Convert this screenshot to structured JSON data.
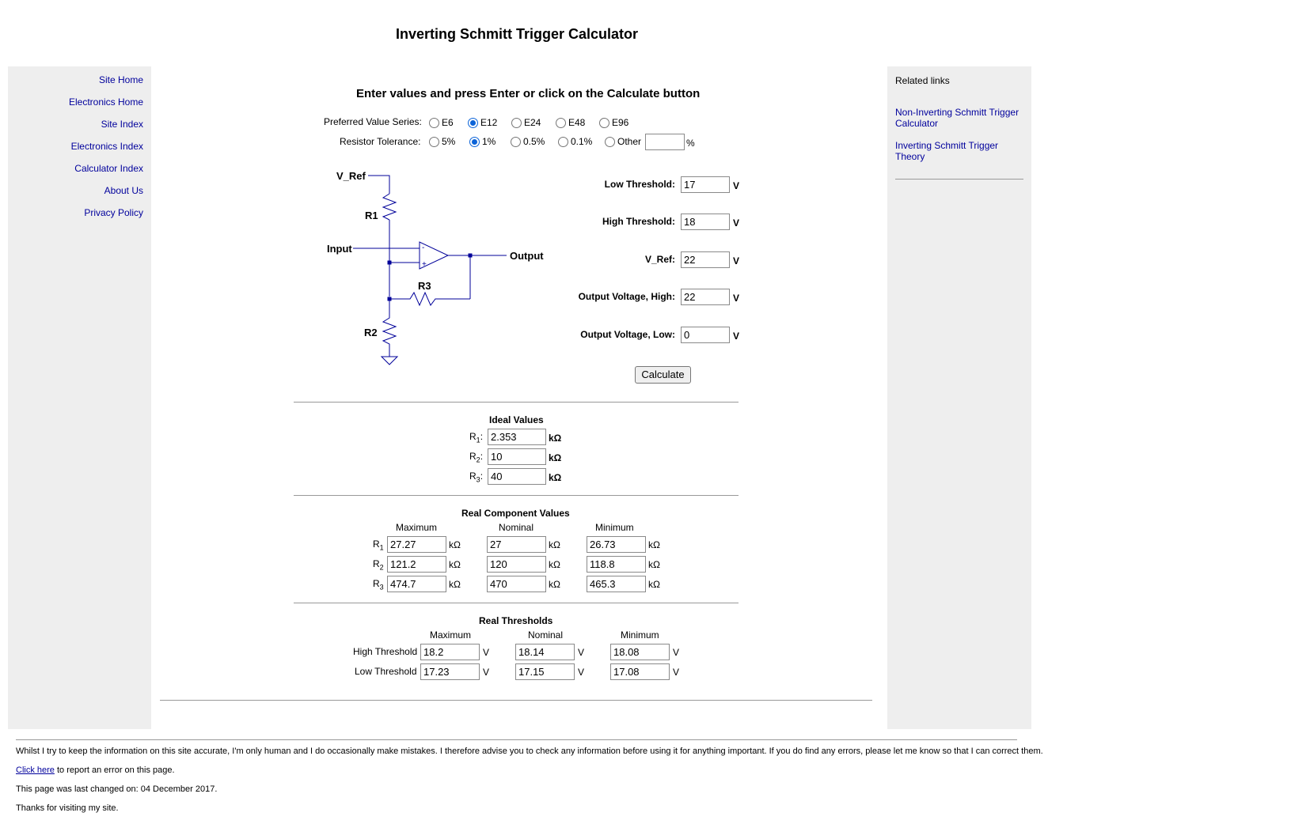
{
  "title": "Inverting Schmitt Trigger Calculator",
  "nav": [
    "Site Home",
    "Electronics Home",
    "Site Index",
    "Electronics Index",
    "Calculator Index",
    "About Us",
    "Privacy Policy"
  ],
  "related": {
    "heading": "Related links",
    "links": [
      "Non-Inverting Schmitt Trigger Calculator",
      "Inverting Schmitt Trigger Theory"
    ]
  },
  "instructions": "Enter values and press Enter or click on the Calculate button",
  "series": {
    "label": "Preferred Value Series:",
    "options": [
      "E6",
      "E12",
      "E24",
      "E48",
      "E96"
    ],
    "selected": "E12"
  },
  "tolerance": {
    "label": "Resistor Tolerance:",
    "options": [
      "5%",
      "1%",
      "0.5%",
      "0.1%",
      "Other"
    ],
    "selected": "1%",
    "other_value": "",
    "other_unit": "%"
  },
  "schematic": {
    "vref": "V_Ref",
    "r1": "R1",
    "r2": "R2",
    "r3": "R3",
    "input": "Input",
    "output": "Output",
    "minus": "-",
    "plus": "+"
  },
  "fields": [
    {
      "label": "Low Threshold:",
      "value": "17",
      "unit": "V"
    },
    {
      "label": "High Threshold:",
      "value": "18",
      "unit": "V"
    },
    {
      "label": "V_Ref:",
      "value": "22",
      "unit": "V"
    },
    {
      "label": "Output Voltage, High:",
      "value": "22",
      "unit": "V"
    },
    {
      "label": "Output Voltage, Low:",
      "value": "0",
      "unit": "V"
    }
  ],
  "calculate_label": "Calculate",
  "ideal": {
    "heading": "Ideal Values",
    "rows": [
      {
        "name": "R",
        "sub": "1",
        "value": "2.353",
        "unit": "kΩ"
      },
      {
        "name": "R",
        "sub": "2",
        "value": "10",
        "unit": "kΩ"
      },
      {
        "name": "R",
        "sub": "3",
        "value": "40",
        "unit": "kΩ"
      }
    ]
  },
  "real_components": {
    "heading": "Real Component Values",
    "columns": [
      "Maximum",
      "Nominal",
      "Minimum"
    ],
    "unit": "kΩ",
    "rows": [
      {
        "name": "R",
        "sub": "1",
        "values": [
          "27.27",
          "27",
          "26.73"
        ]
      },
      {
        "name": "R",
        "sub": "2",
        "values": [
          "121.2",
          "120",
          "118.8"
        ]
      },
      {
        "name": "R",
        "sub": "3",
        "values": [
          "474.7",
          "470",
          "465.3"
        ]
      }
    ]
  },
  "real_thresholds": {
    "heading": "Real Thresholds",
    "columns": [
      "Maximum",
      "Nominal",
      "Minimum"
    ],
    "unit": "V",
    "rows": [
      {
        "name": "High Threshold",
        "values": [
          "18.2",
          "18.14",
          "18.08"
        ]
      },
      {
        "name": "Low Threshold",
        "values": [
          "17.23",
          "17.15",
          "17.08"
        ]
      }
    ]
  },
  "footer": {
    "disclaimer": "Whilst I try to keep the information on this site accurate, I'm only human and I do occasionally make mistakes. I therefore advise you to check any information before using it for anything important. If you do find any errors, please let me know so that I can correct them.",
    "report_link": "Click here",
    "report_text": " to report an error on this page.",
    "last_changed": "This page was last changed on: 04 December 2017.",
    "thanks": "Thanks for visiting my site."
  },
  "colors": {
    "link": "#00009c",
    "panel_bg": "#eeeeee",
    "schematic": "#000099",
    "radio_on": "#0b63d8"
  }
}
